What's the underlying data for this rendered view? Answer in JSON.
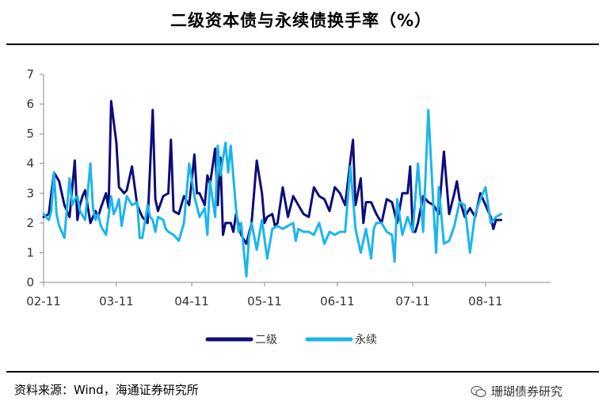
{
  "title": "二级资本债与永续债换手率（%）",
  "source": "资料来源：Wind，海通证券研究所",
  "watermark": "珊瑚债券研究",
  "chart_data": {
    "type": "line",
    "title": "二级资本债与永续债换手率（%）",
    "xlabel": "",
    "ylabel": "",
    "ylim": [
      0,
      7
    ],
    "yticks": [
      0,
      1,
      2,
      3,
      4,
      5,
      6,
      7
    ],
    "xlim": [
      0,
      195
    ],
    "xticks": [
      {
        "label": "02-11",
        "x": 0
      },
      {
        "label": "03-11",
        "x": 28
      },
      {
        "label": "04-11",
        "x": 57
      },
      {
        "label": "05-11",
        "x": 85
      },
      {
        "label": "06-11",
        "x": 113
      },
      {
        "label": "07-11",
        "x": 142
      },
      {
        "label": "08-11",
        "x": 170
      }
    ],
    "grid": false,
    "legend_position": "bottom-center",
    "series": [
      {
        "name": "二级",
        "color": "#0d0d7a",
        "x": [
          0,
          2,
          4,
          6,
          8,
          10,
          12,
          13,
          14,
          15,
          16,
          18,
          20,
          21,
          22,
          24,
          25,
          26,
          28,
          29,
          30,
          31,
          32,
          34,
          36,
          38,
          40,
          42,
          43,
          44,
          46,
          48,
          49,
          50,
          52,
          54,
          56,
          58,
          59,
          60,
          62,
          63,
          64,
          66,
          67,
          68,
          69,
          70,
          72,
          73,
          74,
          76,
          78,
          80,
          82,
          84,
          85,
          86,
          88,
          89,
          90,
          92,
          94,
          96,
          98,
          100,
          102,
          104,
          106,
          108,
          110,
          112,
          114,
          116,
          118,
          119,
          120,
          122,
          123,
          124,
          126,
          128,
          130,
          132,
          134,
          136,
          138,
          140,
          141,
          142,
          143,
          144,
          146,
          148,
          150,
          152,
          154,
          156,
          158,
          159,
          160,
          162,
          164,
          166,
          168,
          170,
          172,
          173,
          174,
          176
        ],
        "y": [
          2.2,
          2.3,
          3.7,
          3.4,
          2.6,
          2.2,
          4.1,
          2.1,
          2.6,
          2.9,
          3.1,
          2.0,
          2.4,
          2.2,
          2.5,
          3.0,
          2.5,
          6.1,
          4.7,
          3.2,
          3.1,
          3.0,
          3.1,
          3.9,
          2.6,
          2.2,
          2.0,
          5.8,
          2.8,
          2.4,
          2.9,
          3.0,
          4.8,
          2.4,
          2.3,
          2.9,
          2.6,
          4.3,
          3.0,
          3.0,
          2.6,
          3.6,
          3.3,
          4.5,
          2.6,
          4.2,
          1.6,
          2.0,
          2.0,
          1.7,
          2.3,
          1.6,
          1.3,
          2.0,
          4.1,
          3.0,
          2.0,
          2.2,
          2.3,
          1.9,
          2.0,
          3.2,
          2.2,
          2.9,
          2.6,
          2.3,
          2.2,
          3.2,
          2.9,
          2.8,
          2.4,
          3.2,
          3.0,
          2.6,
          4.1,
          4.8,
          2.6,
          3.5,
          2.0,
          2.7,
          2.7,
          2.3,
          2.0,
          2.8,
          2.7,
          2.0,
          3.0,
          3.0,
          3.9,
          1.7,
          1.7,
          2.0,
          2.9,
          2.7,
          2.6,
          2.3,
          4.4,
          2.3,
          3.0,
          3.4,
          2.8,
          2.2,
          2.5,
          2.2,
          3.0,
          2.6,
          2.2,
          1.8,
          2.1,
          2.1
        ]
      },
      {
        "name": "永续",
        "color": "#1cb5ec",
        "x": [
          0,
          1,
          2,
          3,
          4,
          5,
          6,
          8,
          10,
          11,
          12,
          13,
          14,
          16,
          18,
          19,
          20,
          21,
          22,
          24,
          26,
          27,
          28,
          29,
          30,
          32,
          34,
          36,
          37,
          38,
          40,
          41,
          42,
          43,
          44,
          46,
          47,
          48,
          50,
          52,
          54,
          56,
          58,
          60,
          62,
          63,
          64,
          66,
          67,
          68,
          70,
          71,
          72,
          74,
          75,
          76,
          78,
          79,
          80,
          82,
          84,
          86,
          88,
          90,
          92,
          94,
          96,
          97,
          98,
          100,
          102,
          104,
          106,
          108,
          110,
          112,
          114,
          116,
          118,
          120,
          122,
          124,
          126,
          127,
          128,
          130,
          132,
          134,
          135,
          136,
          138,
          140,
          142,
          144,
          146,
          148,
          150,
          151,
          152,
          154,
          156,
          158,
          160,
          162,
          164,
          166,
          168,
          170,
          172,
          174,
          176
        ],
        "y": [
          2.3,
          2.2,
          2.1,
          2.4,
          3.7,
          2.3,
          1.9,
          1.5,
          3.5,
          2.6,
          2.8,
          2.9,
          2.4,
          2.1,
          4.0,
          2.5,
          2.1,
          2.3,
          1.9,
          1.6,
          2.9,
          2.3,
          2.5,
          2.8,
          1.9,
          2.9,
          2.6,
          2.7,
          1.5,
          1.5,
          2.6,
          2.2,
          2.1,
          1.7,
          2.2,
          2.1,
          1.8,
          1.7,
          1.6,
          1.4,
          2.0,
          4.0,
          2.9,
          2.2,
          2.5,
          1.6,
          3.4,
          2.2,
          4.6,
          3.6,
          4.7,
          3.7,
          4.6,
          2.5,
          1.7,
          2.0,
          0.2,
          1.5,
          2.0,
          1.1,
          2.1,
          0.8,
          1.8,
          1.9,
          1.8,
          1.9,
          2.0,
          1.4,
          1.8,
          1.7,
          1.7,
          1.6,
          2.0,
          1.3,
          1.7,
          1.6,
          1.7,
          1.7,
          3.9,
          1.8,
          1.0,
          1.8,
          0.8,
          1.8,
          2.0,
          2.0,
          1.7,
          1.6,
          0.7,
          2.8,
          1.6,
          2.2,
          1.7,
          4.0,
          1.7,
          5.8,
          2.5,
          1.0,
          3.2,
          1.3,
          1.4,
          1.9,
          2.7,
          2.6,
          1.0,
          2.3,
          2.8,
          3.2,
          2.0,
          2.2,
          2.3
        ]
      }
    ]
  }
}
